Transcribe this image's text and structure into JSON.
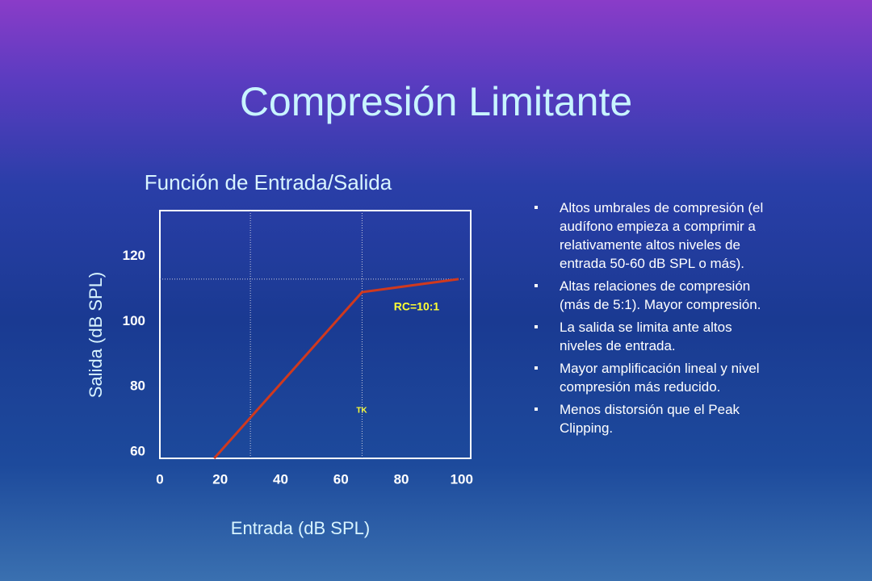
{
  "slide_title": "Compresión Limitante",
  "bullets": [
    "Altos umbrales de compresión (el audífono empieza a comprimir a relativamente altos niveles de entrada 50-60 dB SPL o más).",
    "Altas relaciones de compresión (más de 5:1). Mayor compresión.",
    "La salida se limita ante altos niveles de entrada.",
    "Mayor amplificación lineal y nivel compresión más reducido.",
    "Menos distorsión que el Peak Clipping."
  ],
  "chart_data": {
    "type": "line",
    "title": "Función de Entrada/Salida",
    "xlabel": "Entrada (dB SPL)",
    "ylabel": "Salida (dB SPL)",
    "x": [
      18,
      67,
      99
    ],
    "values": [
      58,
      109,
      113
    ],
    "color": "#d0391e",
    "xlim": [
      0,
      103
    ],
    "ylim": [
      58,
      134
    ],
    "xticks": [
      0,
      20,
      40,
      60,
      80,
      100
    ],
    "yticks": [
      60,
      80,
      100,
      120
    ],
    "vlines": [
      30,
      67
    ],
    "hlines": [
      113
    ],
    "annotations": [
      "RC=10:1",
      "TK"
    ]
  }
}
